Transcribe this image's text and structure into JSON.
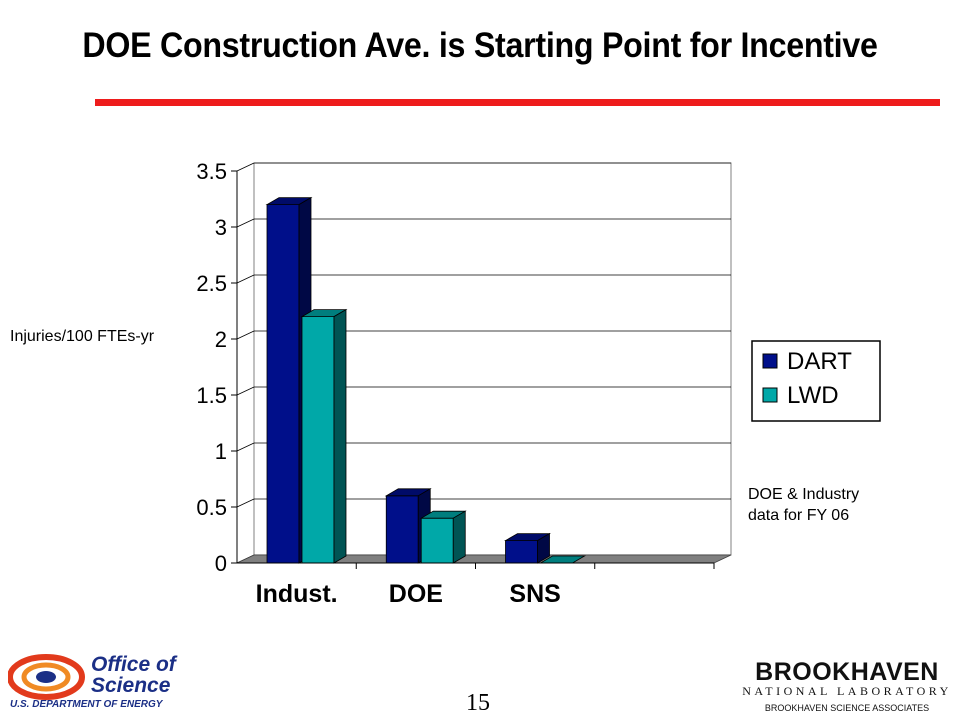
{
  "title": "DOE Construction Ave. is Starting Point for Incentive",
  "y_axis_label": "Injuries/100 FTEs-yr",
  "note_line1": "DOE & Industry",
  "note_line2": "data for FY 06",
  "page_number": "15",
  "colors": {
    "rule": "#ee1c1c",
    "dart": "#000f8a",
    "lwd": "#00a8a8",
    "title": "#000000"
  },
  "logos": {
    "office_line1": "Office of",
    "office_line2": "Science",
    "office_doe": "U.S. DEPARTMENT OF ENERGY",
    "bnl_name": "BROOKHAVEN",
    "bnl_sub": "NATIONAL LABORATORY",
    "bnl_assoc": "BROOKHAVEN SCIENCE ASSOCIATES"
  },
  "chart_data": {
    "type": "bar",
    "categories": [
      "Indust.",
      "DOE",
      "SNS",
      ""
    ],
    "series": [
      {
        "name": "DART",
        "values": [
          3.2,
          0.6,
          0.2,
          0
        ]
      },
      {
        "name": "LWD",
        "values": [
          2.2,
          0.4,
          0.0,
          0
        ]
      }
    ],
    "yticks": [
      "0",
      "0.5",
      "1",
      "1.5",
      "2",
      "2.5",
      "3",
      "3.5"
    ],
    "ylim": [
      0,
      3.5
    ],
    "grid": true,
    "legend_position": "right",
    "style": "3d"
  }
}
